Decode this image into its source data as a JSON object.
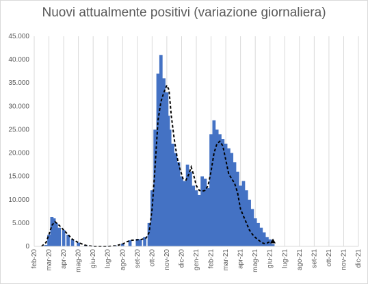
{
  "chart_data": {
    "type": "bar",
    "title": "Nuovi attualmente positivi (variazione giornaliera)",
    "xlabel": "",
    "ylabel": "",
    "ylim": [
      0,
      45000
    ],
    "yticks": [
      0,
      5000,
      10000,
      15000,
      20000,
      25000,
      30000,
      35000,
      40000,
      45000
    ],
    "ytick_labels": [
      "0",
      "5.000",
      "10.000",
      "15.000",
      "20.000",
      "25.000",
      "30.000",
      "35.000",
      "40.000",
      "45.000"
    ],
    "xticks": [
      "feb-20",
      "mar-20",
      "apr-20",
      "mag-20",
      "giu-20",
      "lug-20",
      "ago-20",
      "set-20",
      "ott-20",
      "nov-20",
      "dic-20",
      "gen-21",
      "feb-21",
      "mar-21",
      "apr-21",
      "mag-21",
      "giu-21",
      "lug-21",
      "ago-21",
      "set-21",
      "ott-21",
      "nov-21",
      "dic-21"
    ],
    "grid": "vertical",
    "legend": "none",
    "colors": {
      "bars": "#4472c4",
      "moving_average": "#000000",
      "grid": "#d9d9d9",
      "text": "#595959"
    },
    "series": [
      {
        "type": "bar",
        "x_unit": "month_index_from_feb-20",
        "x": [
          0.8,
          1.0,
          1.2,
          1.35,
          1.5,
          1.7,
          2.0,
          2.3,
          2.6,
          3.0,
          3.5,
          4.0,
          4.5,
          5.0,
          5.5,
          6.0,
          6.5,
          7.0,
          7.2,
          7.5,
          7.8,
          8.0,
          8.2,
          8.4,
          8.6,
          8.8,
          9.0,
          9.1,
          9.2,
          9.4,
          9.6,
          9.8,
          10.0,
          10.2,
          10.4,
          10.6,
          10.8,
          11.0,
          11.2,
          11.4,
          11.6,
          11.8,
          12.0,
          12.2,
          12.4,
          12.6,
          12.8,
          13.0,
          13.2,
          13.4,
          13.6,
          13.8,
          14.0,
          14.2,
          14.4,
          14.6,
          14.8,
          15.0,
          15.2,
          15.4,
          15.6,
          15.8,
          16.0,
          16.2
        ],
        "values": [
          300,
          2500,
          6300,
          6000,
          5000,
          4000,
          3500,
          2500,
          1500,
          800,
          300,
          100,
          100,
          100,
          200,
          600,
          1300,
          1600,
          1500,
          2000,
          5000,
          12000,
          25000,
          37000,
          41000,
          36000,
          33000,
          28000,
          25000,
          22000,
          20000,
          18000,
          15000,
          14000,
          17500,
          16000,
          13000,
          12000,
          11000,
          15000,
          14500,
          12500,
          24000,
          27000,
          25000,
          24000,
          23000,
          22000,
          21000,
          20000,
          18000,
          16000,
          13000,
          14000,
          12000,
          10000,
          8000,
          6000,
          5000,
          4000,
          3000,
          2000,
          1500,
          500
        ]
      },
      {
        "type": "line",
        "style": "dashed",
        "x_unit": "month_index_from_feb-20",
        "x": [
          0.5,
          0.8,
          1.0,
          1.2,
          1.4,
          1.7,
          2.0,
          2.3,
          2.6,
          3.0,
          3.5,
          4.0,
          4.5,
          5.0,
          5.5,
          6.0,
          6.3,
          6.6,
          7.0,
          7.3,
          7.6,
          7.8,
          8.0,
          8.2,
          8.4,
          8.6,
          8.8,
          9.0,
          9.15,
          9.3,
          9.5,
          9.7,
          9.9,
          10.1,
          10.3,
          10.5,
          10.65,
          10.8,
          11.0,
          11.2,
          11.4,
          11.6,
          11.8,
          12.0,
          12.2,
          12.4,
          12.6,
          12.8,
          13.0,
          13.2,
          13.4,
          13.6,
          13.8,
          14.0,
          14.2,
          14.4,
          14.6,
          14.8,
          15.0,
          15.2,
          15.4,
          15.6,
          15.8,
          16.0,
          16.2
        ],
        "values": [
          0,
          800,
          2500,
          4500,
          5300,
          4500,
          3500,
          2500,
          1500,
          800,
          200,
          0,
          0,
          0,
          100,
          500,
          1000,
          1300,
          1400,
          1500,
          1800,
          3000,
          8000,
          17000,
          27000,
          31000,
          33000,
          34500,
          33500,
          28000,
          23000,
          19000,
          16500,
          14500,
          14200,
          15500,
          17000,
          15500,
          13000,
          12000,
          11800,
          12000,
          13000,
          16000,
          20000,
          22000,
          22500,
          21500,
          18500,
          15500,
          14500,
          13500,
          11500,
          8000,
          6500,
          5000,
          3500,
          2600,
          1900,
          1400,
          900,
          600,
          700,
          1000,
          1100
        ]
      }
    ]
  }
}
